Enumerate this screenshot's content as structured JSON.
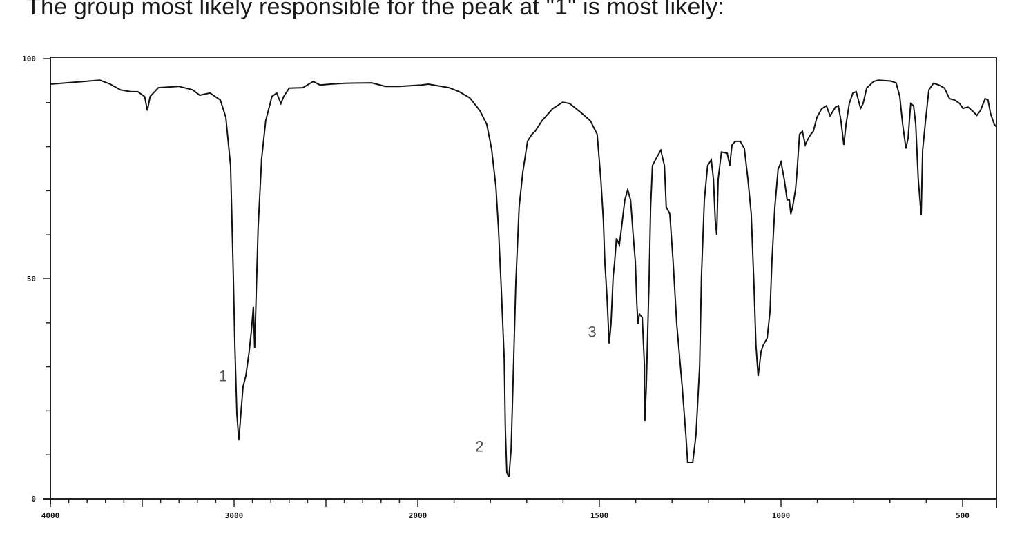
{
  "question": "The group most likely responsible for the peak at \"1\" is most likely:",
  "chart_data": {
    "type": "line",
    "title": "",
    "xlabel": "",
    "ylabel": "",
    "xlim": [
      4000,
      405
    ],
    "x_scale_note_visible": "axis scale changes at 2000 (expanded below 2000)",
    "ylim": [
      0,
      100
    ],
    "grid": false,
    "x_ticks": [
      "4000",
      "3000",
      "2000",
      "1500",
      "1000",
      "500"
    ],
    "y_ticks": [
      "0",
      "50",
      "100"
    ],
    "peak_labels": [
      {
        "text": "1",
        "x": 3060,
        "y": 28
      },
      {
        "text": "2",
        "x": 1830,
        "y": 12
      },
      {
        "text": "3",
        "x": 1520,
        "y": 38
      }
    ],
    "line_color": "#111111",
    "series": [
      {
        "x": [
          4000,
          3824,
          3730,
          3674,
          3618,
          3562,
          3524,
          3487,
          3472,
          3457,
          3412,
          3300,
          3225,
          3187,
          3131,
          3075,
          3045,
          3019,
          3004,
          2996,
          2985,
          2974,
          2963,
          2951,
          2936,
          2918,
          2906,
          2895,
          2888,
          2880,
          2869,
          2850,
          2828,
          2794,
          2768,
          2745,
          2730,
          2700,
          2626,
          2569,
          2532,
          2476,
          2401,
          2251,
          2176,
          2101,
          1990,
          1971,
          1914,
          1886,
          1857,
          1829,
          1810,
          1797,
          1785,
          1778,
          1770,
          1762,
          1759,
          1755,
          1749,
          1743,
          1738,
          1730,
          1721,
          1711,
          1698,
          1686,
          1677,
          1658,
          1629,
          1601,
          1582,
          1553,
          1525,
          1506,
          1496,
          1489,
          1485,
          1479,
          1473,
          1468,
          1462,
          1458,
          1453,
          1445,
          1439,
          1430,
          1422,
          1414,
          1407,
          1401,
          1397,
          1394,
          1390,
          1382,
          1376,
          1375,
          1371,
          1363,
          1359,
          1354,
          1344,
          1331,
          1321,
          1316,
          1306,
          1297,
          1287,
          1272,
          1262,
          1257,
          1243,
          1234,
          1224,
          1219,
          1211,
          1202,
          1192,
          1186,
          1181,
          1177,
          1173,
          1164,
          1148,
          1141,
          1135,
          1126,
          1112,
          1101,
          1091,
          1082,
          1074,
          1069,
          1063,
          1055,
          1049,
          1038,
          1030,
          1025,
          1017,
          1008,
          1000,
          991,
          983,
          977,
          973,
          968,
          960,
          956,
          949,
          941,
          933,
          926,
          918,
          911,
          901,
          888,
          875,
          865,
          859,
          850,
          842,
          835,
          827,
          821,
          812,
          802,
          793,
          787,
          781,
          774,
          764,
          745,
          732,
          698,
          683,
          673,
          665,
          656,
          650,
          643,
          635,
          629,
          622,
          614,
          610,
          603,
          593,
          580,
          565,
          550,
          536,
          522,
          508,
          499,
          485,
          470,
          461,
          451,
          438,
          430,
          423,
          413,
          408
        ],
        "y": [
          94.2,
          94.8,
          95.1,
          94.2,
          92.9,
          92.5,
          92.5,
          91.4,
          88.2,
          91.4,
          93.4,
          93.7,
          92.9,
          91.7,
          92.2,
          90.6,
          86.7,
          75.7,
          50.6,
          34.9,
          19.3,
          13.3,
          19.3,
          25.5,
          27.9,
          33.4,
          38.1,
          43.6,
          34.2,
          45.9,
          61.6,
          77.3,
          85.9,
          91.4,
          92.2,
          89.8,
          91.4,
          93.3,
          93.4,
          94.8,
          94.0,
          94.2,
          94.4,
          94.5,
          93.7,
          93.7,
          94.0,
          94.2,
          93.4,
          92.5,
          91.1,
          88.2,
          85.1,
          79.6,
          71.0,
          61.6,
          47.5,
          31.8,
          16.1,
          6.0,
          4.9,
          11.4,
          25.5,
          49.1,
          66.3,
          74.1,
          81.2,
          82.8,
          83.5,
          85.9,
          88.6,
          90.1,
          89.8,
          87.9,
          85.9,
          82.8,
          72.6,
          63.2,
          53.8,
          45.9,
          35.3,
          39.7,
          50.6,
          53.8,
          59.2,
          57.7,
          61.6,
          67.9,
          70.2,
          67.9,
          60.0,
          53.8,
          44.4,
          39.7,
          42.0,
          41.2,
          30.3,
          17.7,
          25.5,
          50.6,
          66.3,
          75.7,
          77.3,
          79.2,
          75.7,
          66.3,
          64.7,
          53.8,
          39.7,
          25.5,
          14.6,
          8.3,
          8.3,
          14.6,
          30.3,
          50.6,
          67.9,
          75.7,
          77.0,
          72.6,
          63.2,
          60.0,
          72.6,
          78.8,
          78.5,
          75.7,
          80.4,
          81.2,
          81.2,
          79.6,
          72.6,
          64.7,
          47.5,
          34.9,
          27.9,
          33.4,
          34.9,
          36.5,
          42.8,
          53.8,
          66.3,
          74.9,
          76.5,
          72.6,
          67.9,
          67.9,
          64.7,
          66.3,
          70.2,
          74.1,
          82.8,
          83.5,
          80.4,
          81.7,
          82.8,
          83.5,
          86.7,
          88.6,
          89.3,
          87.0,
          87.8,
          89.0,
          89.3,
          85.9,
          80.4,
          85.1,
          89.8,
          92.2,
          92.5,
          90.6,
          88.7,
          89.8,
          93.3,
          94.8,
          95.1,
          94.9,
          94.5,
          91.4,
          85.1,
          79.6,
          82.0,
          89.8,
          89.3,
          85.1,
          72.6,
          64.4,
          79.2,
          85.1,
          92.9,
          94.4,
          94.0,
          93.3,
          90.9,
          90.6,
          89.8,
          88.7,
          89.0,
          87.9,
          87.1,
          88.2,
          90.9,
          90.6,
          87.5,
          85.1,
          84.6
        ]
      }
    ]
  }
}
